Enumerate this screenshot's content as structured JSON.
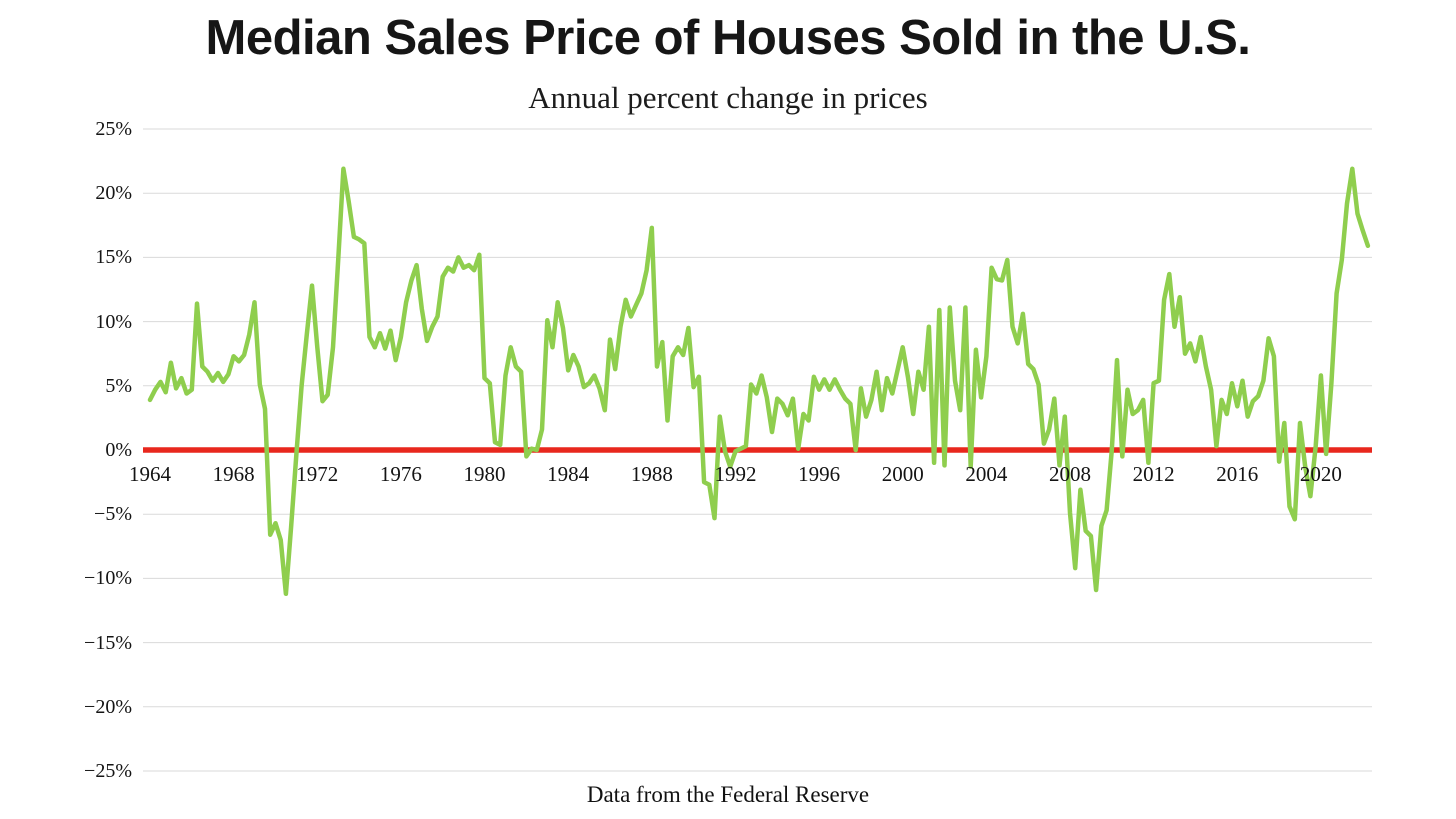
{
  "page": {
    "background_color": "#ffffff"
  },
  "chart_data": {
    "type": "line",
    "title": "Median Sales Price of Houses Sold in the U.S.",
    "subtitle": "Annual percent change in prices",
    "caption": "Data from the Federal Reserve",
    "grid": "horizontal",
    "legend": "none",
    "ylim": [
      -25,
      25
    ],
    "y_tick_values": [
      25,
      20,
      15,
      10,
      5,
      0,
      -5,
      -10,
      -15,
      -20,
      -25
    ],
    "y_tick_labels": [
      "25%",
      "20%",
      "15%",
      "10%",
      "5%",
      "0%",
      "−5%",
      "−10%",
      "−15%",
      "−20%",
      "−25%"
    ],
    "x_tick_years": [
      1964,
      1968,
      1972,
      1976,
      1980,
      1984,
      1988,
      1992,
      1996,
      2000,
      2004,
      2008,
      2012,
      2016,
      2020
    ],
    "x_start_year": 1964.0,
    "x_end_year": 2022.25,
    "frequency": "quarterly",
    "line_color": "#8fce4e",
    "zero_line_color": "#e8271d",
    "grid_color": "#dadada",
    "series": [
      {
        "name": "Annual percent change",
        "start": "1964Q1",
        "end": "2022Q2",
        "values": [
          3.9,
          4.7,
          5.3,
          4.5,
          6.8,
          4.8,
          5.6,
          4.4,
          4.7,
          11.4,
          6.5,
          6.1,
          5.4,
          6.0,
          5.3,
          5.9,
          7.3,
          6.9,
          7.4,
          9.0,
          11.5,
          5.1,
          3.2,
          -6.6,
          -5.7,
          -7.0,
          -11.2,
          -6.0,
          -0.3,
          5.0,
          9.0,
          12.8,
          8.0,
          3.8,
          4.3,
          8.0,
          14.8,
          21.9,
          19.4,
          16.6,
          16.4,
          16.1,
          8.8,
          8.0,
          9.1,
          7.9,
          9.3,
          7.0,
          8.8,
          11.5,
          13.2,
          14.4,
          11.0,
          8.5,
          9.6,
          10.4,
          13.5,
          14.2,
          13.9,
          15.0,
          14.2,
          14.4,
          14.0,
          15.2,
          5.6,
          5.2,
          0.6,
          0.4,
          5.8,
          8.0,
          6.5,
          6.1,
          -0.5,
          0.1,
          0.0,
          1.6,
          10.1,
          8.0,
          11.5,
          9.5,
          6.2,
          7.4,
          6.5,
          4.9,
          5.2,
          5.8,
          4.8,
          3.1,
          8.6,
          6.3,
          9.6,
          11.7,
          10.4,
          11.3,
          12.2,
          14.0,
          17.3,
          6.5,
          8.4,
          2.3,
          7.3,
          8.0,
          7.4,
          9.5,
          4.9,
          5.7,
          -2.5,
          -2.7,
          -5.3,
          2.6,
          -0.1,
          -1.3,
          -0.1,
          0.1,
          0.3,
          5.1,
          4.4,
          5.8,
          4.1,
          1.4,
          4.0,
          3.6,
          2.7,
          4.0,
          0.1,
          2.8,
          2.3,
          5.7,
          4.7,
          5.5,
          4.7,
          5.5,
          4.7,
          4.0,
          3.6,
          0.0,
          4.8,
          2.6,
          3.9,
          6.1,
          3.1,
          5.6,
          4.4,
          6.2,
          8.0,
          5.7,
          2.8,
          6.1,
          4.7,
          9.6,
          -1.0,
          10.9,
          -1.2,
          11.1,
          5.4,
          3.1,
          11.1,
          -1.3,
          7.8,
          4.1,
          7.3,
          14.2,
          13.3,
          13.2,
          14.8,
          9.6,
          8.3,
          10.6,
          6.7,
          6.3,
          5.1,
          0.5,
          1.6,
          4.0,
          -1.2,
          2.6,
          -4.9,
          -9.2,
          -3.1,
          -6.3,
          -6.7,
          -10.9,
          -5.9,
          -4.7,
          0.0,
          7.0,
          -0.5,
          4.7,
          2.8,
          3.1,
          3.9,
          -1.0,
          5.2,
          5.4,
          11.7,
          13.7,
          9.6,
          11.9,
          7.5,
          8.3,
          6.9,
          8.8,
          6.5,
          4.7,
          0.3,
          3.9,
          2.8,
          5.2,
          3.4,
          5.4,
          2.6,
          3.8,
          4.2,
          5.4,
          8.7,
          7.3,
          -0.9,
          2.1,
          -4.4,
          -5.4,
          2.1,
          -1.3,
          -3.6,
          0.3,
          5.8,
          -0.3,
          5.2,
          12.2,
          14.8,
          19.2,
          21.9,
          18.4,
          17.1,
          15.9
        ]
      }
    ]
  }
}
